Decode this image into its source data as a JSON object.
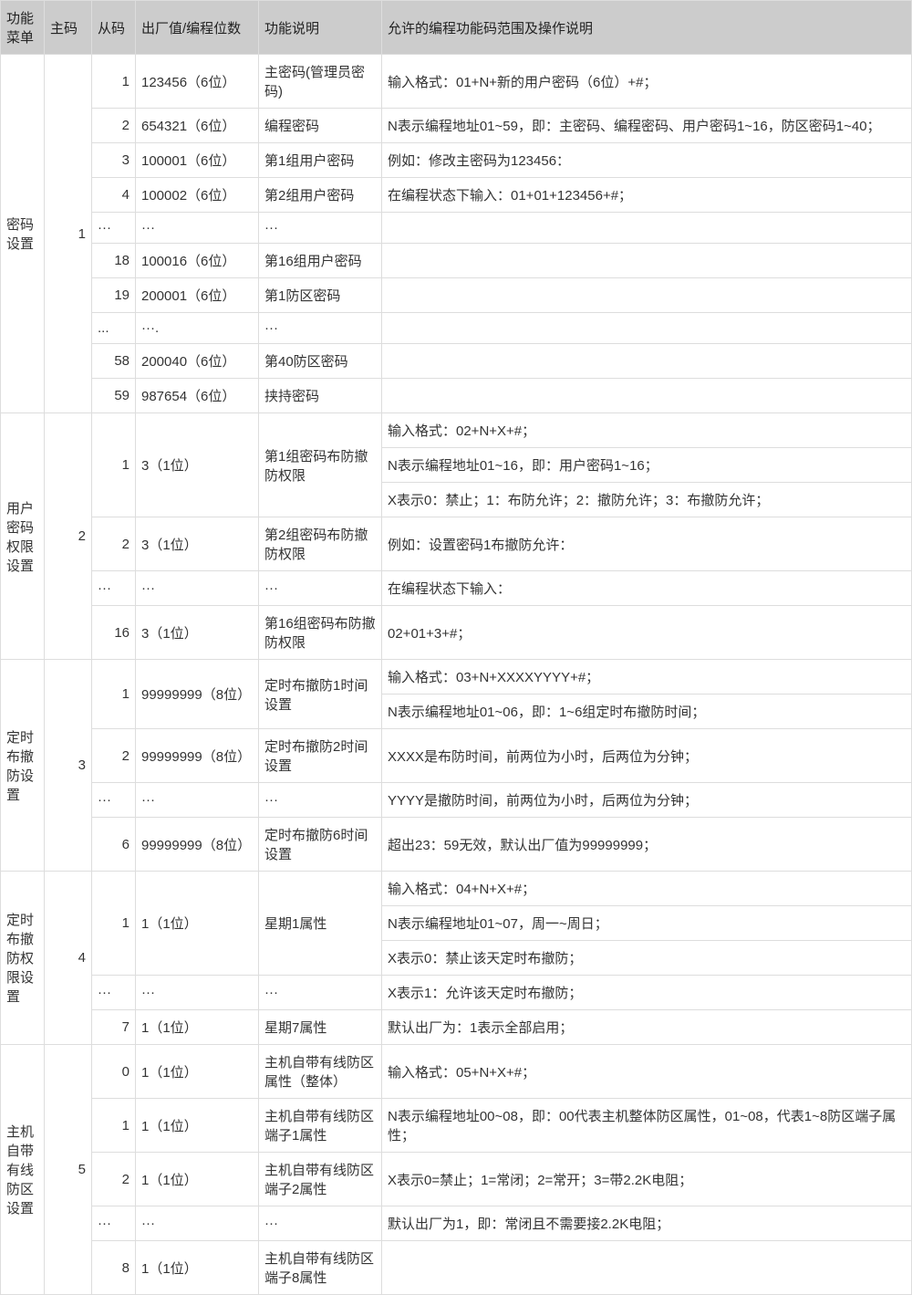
{
  "headers": {
    "menu": "功能菜单",
    "main": "主码",
    "sub": "从码",
    "value": "出厂值/编程位数",
    "func": "功能说明",
    "desc": "允许的编程功能码范围及操作说明"
  },
  "groups": [
    {
      "menu": "密码设置",
      "maincode": "1",
      "rows": [
        {
          "sub": "1",
          "val": "123456（6位）",
          "func": "主密码(管理员密码)",
          "desc": "输入格式：01+N+新的用户密码（6位）+#；"
        },
        {
          "sub": "2",
          "val": "654321（6位）",
          "func": "编程密码",
          "desc": "N表示编程地址01~59，即：主密码、编程密码、用户密码1~16，防区密码1~40；"
        },
        {
          "sub": "3",
          "val": "100001（6位）",
          "func": "第1组用户密码",
          "desc": "例如：修改主密码为123456："
        },
        {
          "sub": "4",
          "val": "100002（6位）",
          "func": "第2组用户密码",
          "desc": "在编程状态下输入：01+01+123456+#；"
        },
        {
          "sub": "···",
          "val": "···",
          "func": "···",
          "desc": ""
        },
        {
          "sub": "18",
          "val": "100016（6位）",
          "func": "第16组用户密码",
          "desc": ""
        },
        {
          "sub": "19",
          "val": "200001（6位）",
          "func": "第1防区密码",
          "desc": ""
        },
        {
          "sub": "...",
          "val": "···.",
          "func": "···",
          "desc": ""
        },
        {
          "sub": "58",
          "val": "200040（6位）",
          "func": "第40防区密码",
          "desc": ""
        },
        {
          "sub": "59",
          "val": "987654（6位）",
          "func": "挟持密码",
          "desc": ""
        }
      ]
    },
    {
      "menu": "用户密码权限设置",
      "maincode": "2",
      "funcrows": [
        {
          "sub": "1",
          "val": "3（1位）",
          "func": "第1组密码布防撤防权限",
          "span": 3
        },
        {
          "sub": "2",
          "val": "3（1位）",
          "func": "第2组密码布防撤防权限",
          "span": 1
        },
        {
          "sub": "···",
          "val": "···",
          "func": "···",
          "span": 1
        },
        {
          "sub": "16",
          "val": "3（1位）",
          "func": "第16组密码布防撤防权限",
          "span": 1
        }
      ],
      "descs": [
        "输入格式：02+N+X+#；",
        "N表示编程地址01~16，即：用户密码1~16；",
        "X表示0：禁止；1：布防允许；2：撤防允许；3：布撤防允许；",
        "例如：设置密码1布撤防允许：",
        "在编程状态下输入：",
        "02+01+3+#；"
      ]
    },
    {
      "menu": "定时布撤防设置",
      "maincode": "3",
      "funcrows": [
        {
          "sub": "1",
          "val": "99999999（8位）",
          "func": "定时布撤防1时间设置",
          "span": 2
        },
        {
          "sub": "2",
          "val": "99999999（8位）",
          "func": "定时布撤防2时间设置",
          "span": 1
        },
        {
          "sub": "···",
          "val": "···",
          "func": "···",
          "span": 1
        },
        {
          "sub": "6",
          "val": "99999999（8位）",
          "func": "定时布撤防6时间设置",
          "span": 1
        }
      ],
      "descs": [
        "输入格式：03+N+XXXXYYYY+#；",
        "N表示编程地址01~06，即：1~6组定时布撤防时间；",
        "XXXX是布防时间，前两位为小时，后两位为分钟；",
        "YYYY是撤防时间，前两位为小时，后两位为分钟；",
        "超出23：59无效，默认出厂值为99999999；"
      ]
    },
    {
      "menu": "定时布撤防权限设置",
      "maincode": "4",
      "funcrows": [
        {
          "sub": "1",
          "val": "1（1位）",
          "func": "星期1属性",
          "span": 3
        },
        {
          "sub": "···",
          "val": "···",
          "func": "···",
          "span": 1
        },
        {
          "sub": "7",
          "val": "1（1位）",
          "func": "星期7属性",
          "span": 1
        }
      ],
      "descs": [
        "输入格式：04+N+X+#；",
        "N表示编程地址01~07，周一~周日；",
        "X表示0：禁止该天定时布撤防；",
        "X表示1：允许该天定时布撤防；",
        "默认出厂为：1表示全部启用；"
      ]
    },
    {
      "menu": "主机自带有线防区设置",
      "maincode": "5",
      "funcrows": [
        {
          "sub": "0",
          "val": "1（1位）",
          "func": "主机自带有线防区属性（整体）",
          "span": 1
        },
        {
          "sub": "1",
          "val": "1（1位）",
          "func": "主机自带有线防区端子1属性",
          "span": 1
        },
        {
          "sub": "2",
          "val": "1（1位）",
          "func": "主机自带有线防区端子2属性",
          "span": 1
        },
        {
          "sub": "···",
          "val": "···",
          "func": "···",
          "span": 1
        },
        {
          "sub": "8",
          "val": "1（1位）",
          "func": "主机自带有线防区端子8属性",
          "span": 1
        }
      ],
      "descs": [
        "输入格式：05+N+X+#；",
        "N表示编程地址00~08，即：00代表主机整体防区属性，01~08，代表1~8防区端子属性；",
        "X表示0=禁止；1=常闭；2=常开；3=带2.2K电阻；",
        "默认出厂为1，即：常闭且不需要接2.2K电阻；",
        ""
      ]
    }
  ]
}
